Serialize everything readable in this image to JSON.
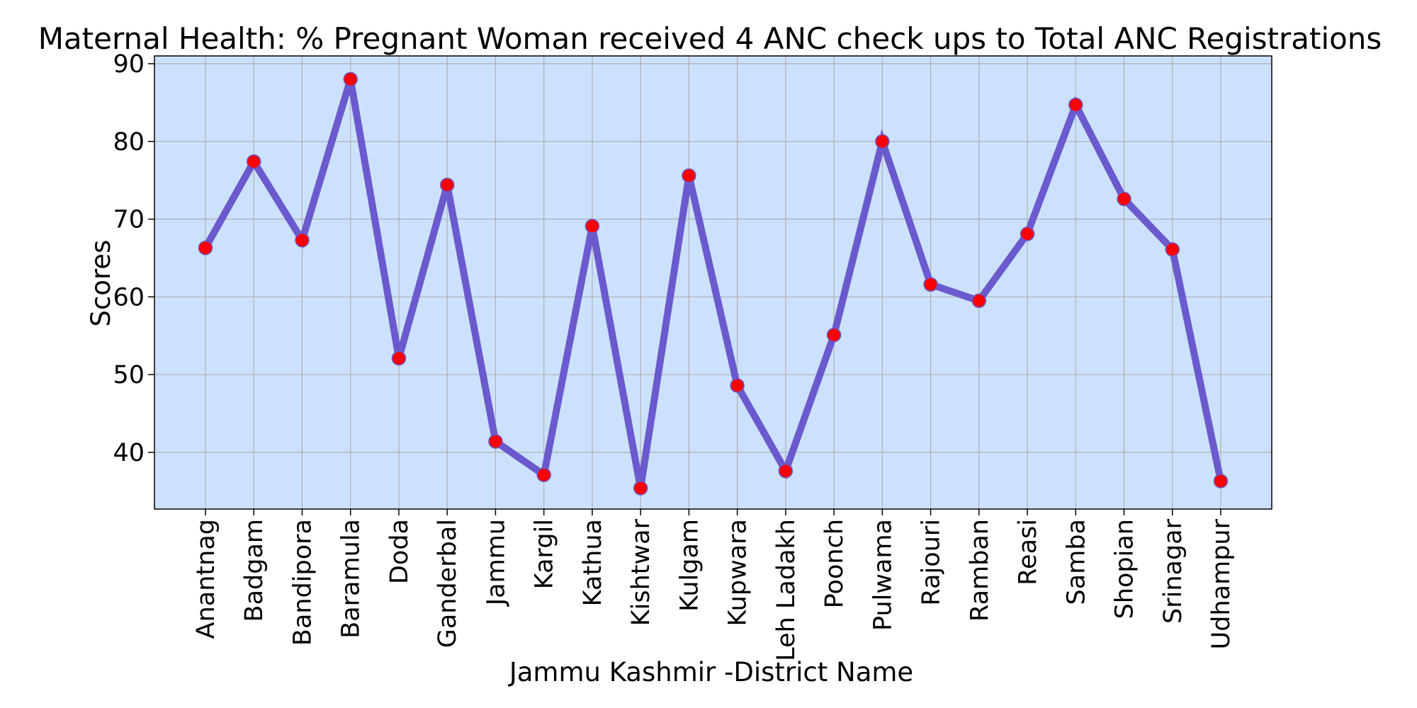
{
  "chart_data": {
    "type": "line",
    "title": "Maternal Health:  % Pregnant Woman received 4 ANC check ups to Total ANC Registrations",
    "xlabel": "Jammu Kashmir -District Name",
    "ylabel": "Scores",
    "categories": [
      "Anantnag",
      "Badgam",
      "Bandipora",
      "Baramula",
      "Doda",
      "Ganderbal",
      "Jammu",
      "Kargil",
      "Kathua",
      "Kishtwar",
      "Kulgam",
      "Kupwara",
      "Leh Ladakh",
      "Poonch",
      "Pulwama",
      "Rajouri",
      "Ramban",
      "Reasi",
      "Samba",
      "Shopian",
      "Srinagar",
      "Udhampur"
    ],
    "series": [
      {
        "values": [
          66.3,
          77.4,
          67.3,
          88.0,
          52.1,
          74.4,
          41.4,
          37.1,
          69.1,
          35.4,
          75.6,
          48.6,
          37.6,
          55.1,
          80.0,
          61.6,
          59.5,
          68.1,
          84.7,
          72.6,
          66.1,
          36.3
        ]
      }
    ],
    "ylim": [
      32.7,
      91.0
    ],
    "yticks": [
      40,
      50,
      60,
      70,
      80,
      90
    ],
    "grid": true,
    "colors": {
      "plot_background": "#cce1fe",
      "line": "#6a5acd",
      "marker_fill": "#ff0000",
      "marker_edge": "#6a5acd"
    }
  }
}
